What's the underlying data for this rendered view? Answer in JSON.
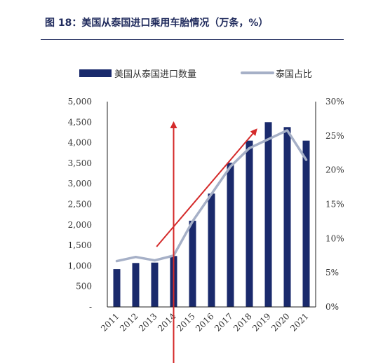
{
  "header": {
    "title": "图 18：美国从泰国进口乘用车胎情况（万条，%）"
  },
  "chart_data": {
    "type": "bar",
    "categories": [
      "2011",
      "2012",
      "2013",
      "2014",
      "2015",
      "2016",
      "2017",
      "2018",
      "2019",
      "2020",
      "2021"
    ],
    "series": [
      {
        "name": "美国从泰国进口数量",
        "type": "bar",
        "axis": "left",
        "color": "#1a2a6c",
        "values": [
          920,
          1070,
          1080,
          1240,
          2100,
          2760,
          3510,
          4050,
          4500,
          4380,
          4050
        ]
      },
      {
        "name": "泰国占比",
        "type": "line",
        "axis": "right",
        "color": "#a6b0c7",
        "values": [
          6.7,
          7.3,
          6.8,
          7.5,
          12.5,
          16.5,
          20.5,
          23.2,
          24.5,
          25.8,
          21.5
        ]
      }
    ],
    "y_left": {
      "min": 0,
      "max": 5000,
      "ticks": [
        0,
        500,
        1000,
        1500,
        2000,
        2500,
        3000,
        3500,
        4000,
        4500,
        5000
      ],
      "tick_labels": [
        "-",
        "500",
        "1,000",
        "1,500",
        "2,000",
        "2,500",
        "3,000",
        "3,500",
        "4,000",
        "4,500",
        "5,000"
      ]
    },
    "y_right": {
      "min": 0,
      "max": 30,
      "ticks": [
        0,
        5,
        10,
        15,
        20,
        25,
        30
      ],
      "tick_labels": [
        "0%",
        "5%",
        "10%",
        "15%",
        "20%",
        "25%",
        "30%"
      ]
    },
    "legend": {
      "position": "top-left"
    },
    "grid": false,
    "annotations": [
      {
        "type": "arrow",
        "color": "#d42a2a",
        "description": "vertical arrow at 2014"
      },
      {
        "type": "arrow",
        "color": "#d42a2a",
        "description": "diagonal upward arrow 2013-2018"
      }
    ]
  }
}
